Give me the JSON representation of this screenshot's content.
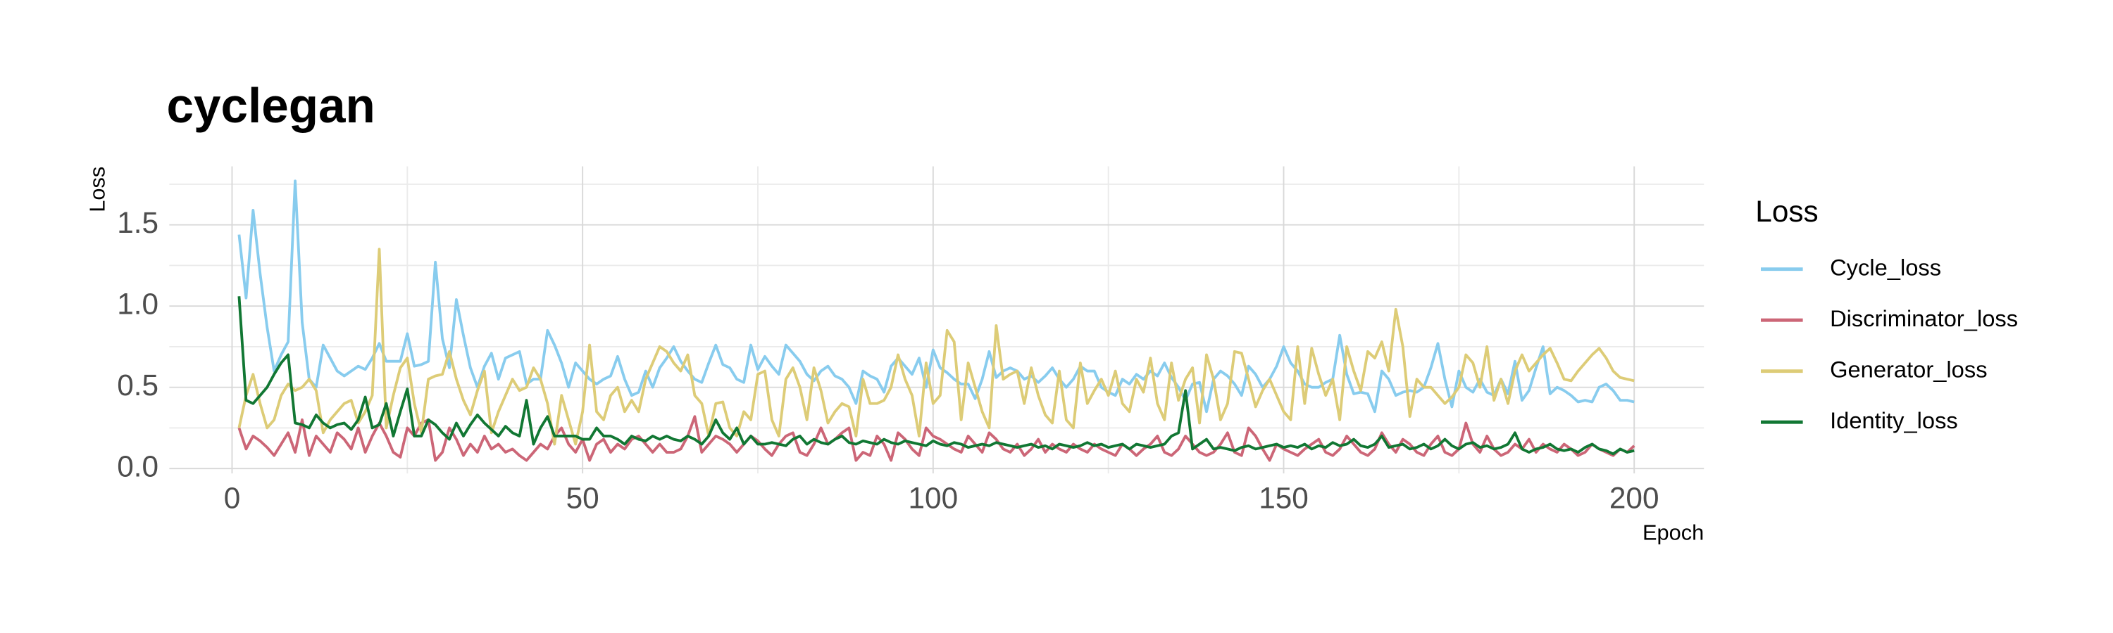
{
  "chart_data": {
    "type": "line",
    "title": "cyclegan",
    "x_label": "Epoch",
    "y_label": "Loss",
    "legend_title": "Loss",
    "legend": "right",
    "grid": true,
    "x": [
      1,
      2,
      3,
      4,
      5,
      6,
      7,
      8,
      9,
      10,
      11,
      12,
      13,
      14,
      15,
      16,
      17,
      18,
      19,
      20,
      21,
      22,
      23,
      24,
      25,
      26,
      27,
      28,
      29,
      30,
      31,
      32,
      33,
      34,
      35,
      36,
      37,
      38,
      39,
      40,
      41,
      42,
      43,
      44,
      45,
      46,
      47,
      48,
      49,
      50,
      51,
      52,
      53,
      54,
      55,
      56,
      57,
      58,
      59,
      60,
      61,
      62,
      63,
      64,
      65,
      66,
      67,
      68,
      69,
      70,
      71,
      72,
      73,
      74,
      75,
      76,
      77,
      78,
      79,
      80,
      81,
      82,
      83,
      84,
      85,
      86,
      87,
      88,
      89,
      90,
      91,
      92,
      93,
      94,
      95,
      96,
      97,
      98,
      99,
      100,
      101,
      102,
      103,
      104,
      105,
      106,
      107,
      108,
      109,
      110,
      111,
      112,
      113,
      114,
      115,
      116,
      117,
      118,
      119,
      120,
      121,
      122,
      123,
      124,
      125,
      126,
      127,
      128,
      129,
      130,
      131,
      132,
      133,
      134,
      135,
      136,
      137,
      138,
      139,
      140,
      141,
      142,
      143,
      144,
      145,
      146,
      147,
      148,
      149,
      150,
      151,
      152,
      153,
      154,
      155,
      156,
      157,
      158,
      159,
      160,
      161,
      162,
      163,
      164,
      165,
      166,
      167,
      168,
      169,
      170,
      171,
      172,
      173,
      174,
      175,
      176,
      177,
      178,
      179,
      180,
      181,
      182,
      183,
      184,
      185,
      186,
      187,
      188,
      189,
      190,
      191,
      192,
      193,
      194,
      195,
      196,
      197,
      198,
      199,
      200
    ],
    "xlim": [
      -8.95,
      209.95
    ],
    "xticks": [
      0,
      50,
      100,
      150,
      200
    ],
    "minor_xticks": [
      25,
      75,
      125,
      175
    ],
    "ylim": [
      -0.03,
      1.86
    ],
    "yticks": [
      {
        "value": 0,
        "label": "0.0"
      },
      0.5,
      {
        "value": 1,
        "label": "1.0"
      },
      1.5
    ],
    "minor_yticks": [
      0.25,
      0.75,
      1.25,
      1.75
    ],
    "series": [
      {
        "name": "Cycle_loss",
        "color": "#88CCEE",
        "values": [
          1.44,
          1.05,
          1.59,
          1.2,
          0.87,
          0.6,
          0.7,
          0.78,
          1.77,
          0.9,
          0.55,
          0.5,
          0.76,
          0.68,
          0.6,
          0.57,
          0.6,
          0.63,
          0.61,
          0.68,
          0.77,
          0.66,
          0.66,
          0.66,
          0.83,
          0.63,
          0.64,
          0.66,
          1.27,
          0.8,
          0.62,
          1.04,
          0.82,
          0.62,
          0.5,
          0.63,
          0.71,
          0.55,
          0.68,
          0.7,
          0.72,
          0.52,
          0.55,
          0.55,
          0.85,
          0.76,
          0.65,
          0.5,
          0.65,
          0.6,
          0.55,
          0.52,
          0.55,
          0.57,
          0.69,
          0.55,
          0.45,
          0.47,
          0.6,
          0.5,
          0.62,
          0.68,
          0.75,
          0.66,
          0.6,
          0.55,
          0.53,
          0.65,
          0.76,
          0.64,
          0.62,
          0.55,
          0.53,
          0.76,
          0.61,
          0.69,
          0.63,
          0.58,
          0.76,
          0.71,
          0.66,
          0.58,
          0.54,
          0.6,
          0.63,
          0.57,
          0.55,
          0.5,
          0.4,
          0.6,
          0.57,
          0.55,
          0.47,
          0.63,
          0.68,
          0.63,
          0.58,
          0.68,
          0.5,
          0.73,
          0.62,
          0.59,
          0.55,
          0.52,
          0.52,
          0.43,
          0.55,
          0.72,
          0.56,
          0.6,
          0.62,
          0.6,
          0.55,
          0.57,
          0.53,
          0.57,
          0.62,
          0.55,
          0.5,
          0.55,
          0.63,
          0.6,
          0.6,
          0.5,
          0.47,
          0.45,
          0.55,
          0.52,
          0.58,
          0.55,
          0.6,
          0.57,
          0.65,
          0.56,
          0.5,
          0.42,
          0.52,
          0.53,
          0.35,
          0.55,
          0.6,
          0.57,
          0.52,
          0.45,
          0.63,
          0.58,
          0.5,
          0.55,
          0.63,
          0.75,
          0.65,
          0.6,
          0.52,
          0.5,
          0.5,
          0.53,
          0.55,
          0.82,
          0.58,
          0.46,
          0.47,
          0.46,
          0.35,
          0.6,
          0.55,
          0.45,
          0.47,
          0.48,
          0.47,
          0.5,
          0.62,
          0.77,
          0.55,
          0.38,
          0.6,
          0.5,
          0.47,
          0.55,
          0.47,
          0.45,
          0.55,
          0.46,
          0.66,
          0.42,
          0.48,
          0.62,
          0.75,
          0.46,
          0.5,
          0.48,
          0.45,
          0.41,
          0.42,
          0.41,
          0.5,
          0.52,
          0.48,
          0.42,
          0.42,
          0.41
        ]
      },
      {
        "name": "Discriminator_loss",
        "color": "#CC6677",
        "values": [
          0.25,
          0.12,
          0.2,
          0.17,
          0.13,
          0.08,
          0.15,
          0.22,
          0.1,
          0.3,
          0.08,
          0.2,
          0.15,
          0.1,
          0.22,
          0.18,
          0.12,
          0.25,
          0.1,
          0.2,
          0.28,
          0.2,
          0.1,
          0.07,
          0.25,
          0.2,
          0.28,
          0.3,
          0.05,
          0.1,
          0.25,
          0.18,
          0.08,
          0.15,
          0.1,
          0.2,
          0.12,
          0.15,
          0.1,
          0.12,
          0.08,
          0.05,
          0.1,
          0.15,
          0.12,
          0.2,
          0.25,
          0.15,
          0.1,
          0.18,
          0.05,
          0.15,
          0.18,
          0.1,
          0.15,
          0.12,
          0.18,
          0.2,
          0.15,
          0.1,
          0.15,
          0.1,
          0.1,
          0.12,
          0.2,
          0.32,
          0.1,
          0.15,
          0.2,
          0.18,
          0.15,
          0.1,
          0.15,
          0.2,
          0.17,
          0.12,
          0.08,
          0.15,
          0.2,
          0.22,
          0.1,
          0.08,
          0.15,
          0.25,
          0.15,
          0.18,
          0.22,
          0.25,
          0.05,
          0.1,
          0.08,
          0.2,
          0.15,
          0.05,
          0.22,
          0.18,
          0.12,
          0.08,
          0.25,
          0.2,
          0.18,
          0.15,
          0.12,
          0.1,
          0.2,
          0.15,
          0.1,
          0.22,
          0.18,
          0.12,
          0.1,
          0.15,
          0.08,
          0.12,
          0.18,
          0.1,
          0.15,
          0.12,
          0.1,
          0.15,
          0.12,
          0.1,
          0.15,
          0.12,
          0.1,
          0.08,
          0.15,
          0.12,
          0.08,
          0.12,
          0.15,
          0.2,
          0.1,
          0.08,
          0.12,
          0.2,
          0.15,
          0.1,
          0.08,
          0.1,
          0.15,
          0.22,
          0.1,
          0.08,
          0.25,
          0.2,
          0.12,
          0.05,
          0.15,
          0.12,
          0.1,
          0.08,
          0.12,
          0.15,
          0.18,
          0.1,
          0.08,
          0.12,
          0.2,
          0.15,
          0.1,
          0.08,
          0.12,
          0.22,
          0.15,
          0.1,
          0.18,
          0.15,
          0.1,
          0.08,
          0.15,
          0.2,
          0.1,
          0.08,
          0.12,
          0.28,
          0.15,
          0.1,
          0.2,
          0.12,
          0.08,
          0.1,
          0.15,
          0.12,
          0.18,
          0.1,
          0.15,
          0.12,
          0.1,
          0.15,
          0.12,
          0.08,
          0.1,
          0.15,
          0.12,
          0.1,
          0.08,
          0.12,
          0.1,
          0.14
        ]
      },
      {
        "name": "Generator_loss",
        "color": "#DDCC77",
        "values": [
          0.25,
          0.45,
          0.58,
          0.4,
          0.25,
          0.3,
          0.45,
          0.52,
          0.48,
          0.5,
          0.55,
          0.48,
          0.22,
          0.3,
          0.35,
          0.4,
          0.42,
          0.28,
          0.35,
          0.45,
          1.35,
          0.25,
          0.45,
          0.62,
          0.68,
          0.4,
          0.22,
          0.55,
          0.57,
          0.58,
          0.72,
          0.55,
          0.42,
          0.33,
          0.48,
          0.6,
          0.22,
          0.35,
          0.45,
          0.55,
          0.48,
          0.5,
          0.62,
          0.55,
          0.4,
          0.15,
          0.45,
          0.3,
          0.15,
          0.35,
          0.76,
          0.35,
          0.3,
          0.45,
          0.5,
          0.35,
          0.42,
          0.35,
          0.55,
          0.65,
          0.75,
          0.72,
          0.65,
          0.6,
          0.7,
          0.45,
          0.4,
          0.2,
          0.4,
          0.41,
          0.25,
          0.2,
          0.35,
          0.3,
          0.58,
          0.6,
          0.3,
          0.2,
          0.55,
          0.62,
          0.5,
          0.3,
          0.62,
          0.48,
          0.28,
          0.35,
          0.4,
          0.38,
          0.2,
          0.55,
          0.4,
          0.4,
          0.42,
          0.5,
          0.7,
          0.55,
          0.45,
          0.2,
          0.65,
          0.4,
          0.45,
          0.85,
          0.78,
          0.3,
          0.65,
          0.5,
          0.35,
          0.25,
          0.88,
          0.55,
          0.58,
          0.6,
          0.4,
          0.62,
          0.45,
          0.33,
          0.28,
          0.6,
          0.3,
          0.25,
          0.65,
          0.4,
          0.48,
          0.55,
          0.45,
          0.6,
          0.4,
          0.35,
          0.55,
          0.47,
          0.68,
          0.4,
          0.3,
          0.65,
          0.42,
          0.55,
          0.62,
          0.28,
          0.7,
          0.55,
          0.3,
          0.4,
          0.72,
          0.71,
          0.55,
          0.38,
          0.48,
          0.55,
          0.45,
          0.35,
          0.3,
          0.75,
          0.4,
          0.74,
          0.58,
          0.45,
          0.55,
          0.3,
          0.75,
          0.6,
          0.48,
          0.72,
          0.68,
          0.78,
          0.6,
          0.98,
          0.75,
          0.32,
          0.55,
          0.5,
          0.5,
          0.45,
          0.4,
          0.44,
          0.5,
          0.7,
          0.65,
          0.5,
          0.75,
          0.42,
          0.55,
          0.4,
          0.6,
          0.7,
          0.6,
          0.65,
          0.7,
          0.74,
          0.65,
          0.55,
          0.54,
          0.6,
          0.65,
          0.7,
          0.74,
          0.68,
          0.6,
          0.56,
          0.55,
          0.54
        ]
      },
      {
        "name": "Identity_loss",
        "color": "#117733",
        "values": [
          1.06,
          0.42,
          0.4,
          0.45,
          0.5,
          0.58,
          0.65,
          0.7,
          0.28,
          0.27,
          0.25,
          0.33,
          0.28,
          0.25,
          0.27,
          0.28,
          0.24,
          0.3,
          0.44,
          0.25,
          0.27,
          0.4,
          0.2,
          0.35,
          0.49,
          0.2,
          0.2,
          0.3,
          0.27,
          0.22,
          0.18,
          0.28,
          0.2,
          0.27,
          0.33,
          0.28,
          0.24,
          0.2,
          0.26,
          0.22,
          0.2,
          0.42,
          0.15,
          0.25,
          0.32,
          0.2,
          0.2,
          0.2,
          0.2,
          0.18,
          0.18,
          0.25,
          0.2,
          0.2,
          0.18,
          0.15,
          0.2,
          0.18,
          0.17,
          0.2,
          0.18,
          0.2,
          0.18,
          0.17,
          0.2,
          0.18,
          0.15,
          0.2,
          0.3,
          0.22,
          0.18,
          0.25,
          0.15,
          0.2,
          0.15,
          0.15,
          0.16,
          0.15,
          0.14,
          0.18,
          0.2,
          0.15,
          0.18,
          0.16,
          0.15,
          0.18,
          0.2,
          0.16,
          0.15,
          0.17,
          0.16,
          0.15,
          0.18,
          0.16,
          0.15,
          0.17,
          0.16,
          0.15,
          0.14,
          0.17,
          0.15,
          0.14,
          0.16,
          0.15,
          0.13,
          0.14,
          0.15,
          0.14,
          0.16,
          0.15,
          0.14,
          0.13,
          0.14,
          0.15,
          0.13,
          0.14,
          0.12,
          0.15,
          0.14,
          0.13,
          0.14,
          0.16,
          0.14,
          0.15,
          0.13,
          0.14,
          0.15,
          0.12,
          0.15,
          0.14,
          0.13,
          0.14,
          0.15,
          0.2,
          0.22,
          0.48,
          0.12,
          0.15,
          0.18,
          0.12,
          0.13,
          0.12,
          0.11,
          0.13,
          0.14,
          0.12,
          0.13,
          0.14,
          0.15,
          0.13,
          0.14,
          0.13,
          0.15,
          0.12,
          0.14,
          0.13,
          0.16,
          0.14,
          0.15,
          0.18,
          0.14,
          0.13,
          0.15,
          0.2,
          0.13,
          0.14,
          0.15,
          0.12,
          0.13,
          0.15,
          0.12,
          0.14,
          0.18,
          0.14,
          0.12,
          0.15,
          0.16,
          0.13,
          0.14,
          0.12,
          0.13,
          0.15,
          0.22,
          0.12,
          0.1,
          0.12,
          0.13,
          0.15,
          0.12,
          0.11,
          0.12,
          0.1,
          0.13,
          0.15,
          0.12,
          0.11,
          0.09,
          0.12,
          0.1,
          0.11
        ]
      }
    ]
  }
}
